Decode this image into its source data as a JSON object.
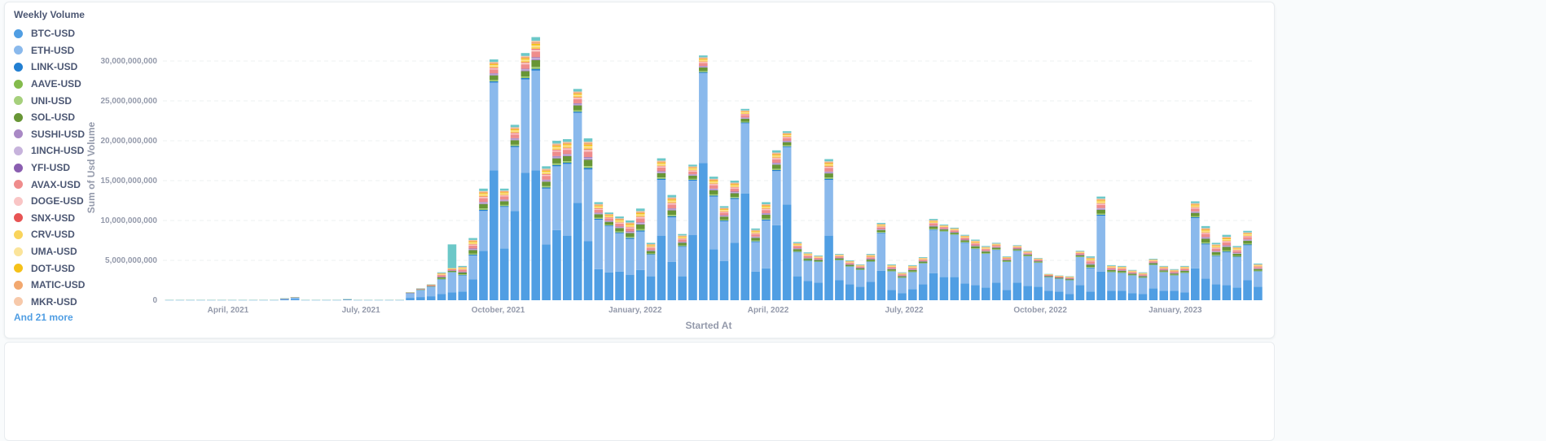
{
  "legend": {
    "title": "Weekly Volume",
    "more_label": "And 21 more"
  },
  "chart_data": {
    "type": "bar",
    "stacked": true,
    "title": "Weekly Volume",
    "xlabel": "Started At",
    "ylabel": "Sum of Usd Volume",
    "ylim": [
      0,
      33200000000
    ],
    "grid": true,
    "legend_placement": "left",
    "unit_scale": 1000000000,
    "y_ticks": [
      {
        "value": 0,
        "label": "0"
      },
      {
        "value": 5000000000,
        "label": "5,000,000,000"
      },
      {
        "value": 10000000000,
        "label": "10,000,000,000"
      },
      {
        "value": 15000000000,
        "label": "15,000,000,000"
      },
      {
        "value": 20000000000,
        "label": "20,000,000,000"
      },
      {
        "value": 25000000000,
        "label": "25,000,000,000"
      },
      {
        "value": 30000000000,
        "label": "30,000,000,000"
      }
    ],
    "x_ticks": [
      {
        "week_offset": 5.6,
        "label": "April, 2021"
      },
      {
        "week_offset": 18.3,
        "label": "July, 2021"
      },
      {
        "week_offset": 31.4,
        "label": "October, 2021"
      },
      {
        "week_offset": 44.5,
        "label": "January, 2022"
      },
      {
        "week_offset": 57.2,
        "label": "April, 2022"
      },
      {
        "week_offset": 70.2,
        "label": "July, 2022"
      },
      {
        "week_offset": 83.2,
        "label": "October, 2022"
      },
      {
        "week_offset": 96.1,
        "label": "January, 2023"
      }
    ],
    "series_legend": [
      {
        "name": "BTC-USD",
        "color": "#509ee3"
      },
      {
        "name": "ETH-USD",
        "color": "#8ab9ec"
      },
      {
        "name": "LINK-USD",
        "color": "#227fd2"
      },
      {
        "name": "AAVE-USD",
        "color": "#84bb4c"
      },
      {
        "name": "UNI-USD",
        "color": "#a6d07c"
      },
      {
        "name": "SOL-USD",
        "color": "#689636"
      },
      {
        "name": "SUSHI-USD",
        "color": "#a989c5"
      },
      {
        "name": "1INCH-USD",
        "color": "#c7b3dc"
      },
      {
        "name": "YFI-USD",
        "color": "#8a5eb0"
      },
      {
        "name": "AVAX-USD",
        "color": "#ef8c8c"
      },
      {
        "name": "DOGE-USD",
        "color": "#f9c5c5"
      },
      {
        "name": "SNX-USD",
        "color": "#e75454"
      },
      {
        "name": "CRV-USD",
        "color": "#f9d45c"
      },
      {
        "name": "UMA-USD",
        "color": "#fbe49a"
      },
      {
        "name": "DOT-USD",
        "color": "#f5c119"
      },
      {
        "name": "MATIC-USD",
        "color": "#f2a86f"
      },
      {
        "name": "MKR-USD",
        "color": "#f7c9aa"
      }
    ],
    "hidden_series_color": "#6cc8c8",
    "totals_billion": [
      0.05,
      0.05,
      0.05,
      0.05,
      0.05,
      0.05,
      0.05,
      0.05,
      0.05,
      0.05,
      0.05,
      0.25,
      0.4,
      0.05,
      0.05,
      0.05,
      0.05,
      0.15,
      0.05,
      0.05,
      0.05,
      0.05,
      0.05,
      1.0,
      1.5,
      2.0,
      3.5,
      7.0,
      4.3,
      7.8,
      14.0,
      30.2,
      14.0,
      22.0,
      31.0,
      33.0,
      16.8,
      20.0,
      20.2,
      26.5,
      20.3,
      12.3,
      11.0,
      10.5,
      10.0,
      11.5,
      7.2,
      17.8,
      13.2,
      8.3,
      17.0,
      30.7,
      15.5,
      11.8,
      15.0,
      24.0,
      9.0,
      12.3,
      18.8,
      21.2,
      7.3,
      6.0,
      5.6,
      17.7,
      5.8,
      5.0,
      4.5,
      5.8,
      9.7,
      4.5,
      3.5,
      4.4,
      5.4,
      10.2,
      9.5,
      9.1,
      8.2,
      7.6,
      6.8,
      7.2,
      5.5,
      6.9,
      6.2,
      5.3,
      3.3,
      3.1,
      3.0,
      6.2,
      5.5,
      13.0,
      4.4,
      4.3,
      3.8,
      3.5,
      5.2,
      4.3,
      3.9,
      4.3,
      12.4,
      9.3,
      7.2,
      8.2,
      6.8,
      8.7,
      4.6
    ],
    "btc_billion": [
      0.02,
      0.02,
      0.02,
      0.02,
      0.02,
      0.02,
      0.02,
      0.02,
      0.02,
      0.02,
      0.02,
      0.1,
      0.16,
      0.02,
      0.02,
      0.02,
      0.02,
      0.06,
      0.02,
      0.02,
      0.02,
      0.02,
      0.02,
      0.3,
      0.4,
      0.5,
      0.8,
      1.0,
      1.1,
      2.6,
      6.2,
      16.3,
      6.5,
      11.2,
      16.0,
      16.3,
      7.0,
      8.8,
      8.1,
      12.2,
      7.4,
      3.9,
      3.5,
      3.6,
      3.2,
      3.8,
      3.0,
      8.1,
      4.8,
      3.0,
      8.2,
      17.2,
      6.4,
      4.9,
      7.2,
      13.4,
      3.6,
      4.0,
      9.4,
      12.0,
      3.0,
      2.4,
      2.2,
      8.1,
      2.5,
      2.0,
      1.7,
      2.3,
      3.7,
      1.3,
      0.9,
      1.4,
      2.0,
      3.4,
      2.9,
      2.9,
      2.1,
      1.9,
      1.6,
      2.2,
      1.3,
      2.2,
      1.8,
      1.7,
      1.2,
      1.1,
      0.8,
      1.9,
      1.1,
      3.6,
      1.2,
      1.2,
      0.9,
      0.8,
      1.5,
      1.2,
      1.2,
      1.0,
      4.0,
      2.7,
      2.0,
      1.9,
      1.6,
      2.5,
      1.7
    ],
    "eth_billion": [
      0.025,
      0.025,
      0.025,
      0.025,
      0.025,
      0.025,
      0.025,
      0.025,
      0.025,
      0.025,
      0.025,
      0.12,
      0.2,
      0.025,
      0.025,
      0.025,
      0.025,
      0.07,
      0.025,
      0.025,
      0.025,
      0.025,
      0.025,
      0.6,
      0.9,
      1.2,
      1.8,
      2.5,
      2.0,
      3.0,
      5.0,
      11.0,
      5.2,
      8.0,
      11.7,
      12.5,
      7.0,
      8.0,
      9.0,
      11.3,
      9.0,
      6.2,
      5.8,
      4.8,
      4.5,
      4.8,
      2.7,
      7.0,
      5.6,
      3.7,
      6.8,
      11.3,
      6.6,
      5.0,
      5.5,
      8.8,
      3.7,
      6.0,
      6.8,
      7.2,
      3.0,
      2.5,
      2.6,
      7.0,
      2.5,
      2.2,
      2.1,
      2.5,
      4.7,
      2.3,
      1.9,
      2.1,
      2.6,
      5.4,
      5.7,
      5.3,
      5.1,
      4.5,
      4.2,
      4.1,
      3.5,
      4.0,
      3.7,
      3.0,
      1.7,
      1.6,
      1.7,
      3.5,
      2.9,
      7.0,
      2.3,
      2.2,
      2.2,
      2.0,
      2.9,
      2.3,
      1.9,
      2.4,
      6.3,
      4.3,
      3.5,
      4.1,
      3.8,
      4.4,
      1.9
    ],
    "other_share_of_remainder": {
      "LINK-USD": 0.05,
      "AAVE-USD": 0.03,
      "UNI-USD": 0.03,
      "SOL-USD": 0.2,
      "SUSHI-USD": 0.04,
      "1INCH-USD": 0.03,
      "YFI-USD": 0.02,
      "AVAX-USD": 0.17,
      "DOGE-USD": 0.06,
      "SNX-USD": 0.02,
      "CRV-USD": 0.06,
      "UMA-USD": 0.04,
      "DOT-USD": 0.05,
      "MATIC-USD": 0.06,
      "MKR-USD": 0.03,
      "other": 0.11
    }
  }
}
